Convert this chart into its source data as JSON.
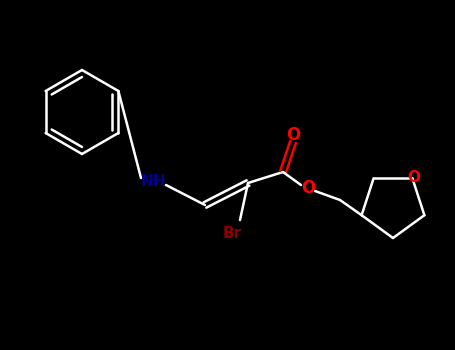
{
  "bg_color": "#000000",
  "N_color": "#00008B",
  "O_color": "#ff0000",
  "Br_color": "#8B0000",
  "bond_color": "#ffffff",
  "lw": 1.8,
  "figsize": [
    4.55,
    3.5
  ],
  "dpi": 100,
  "xlim": [
    0,
    455
  ],
  "ylim": [
    0,
    350
  ]
}
